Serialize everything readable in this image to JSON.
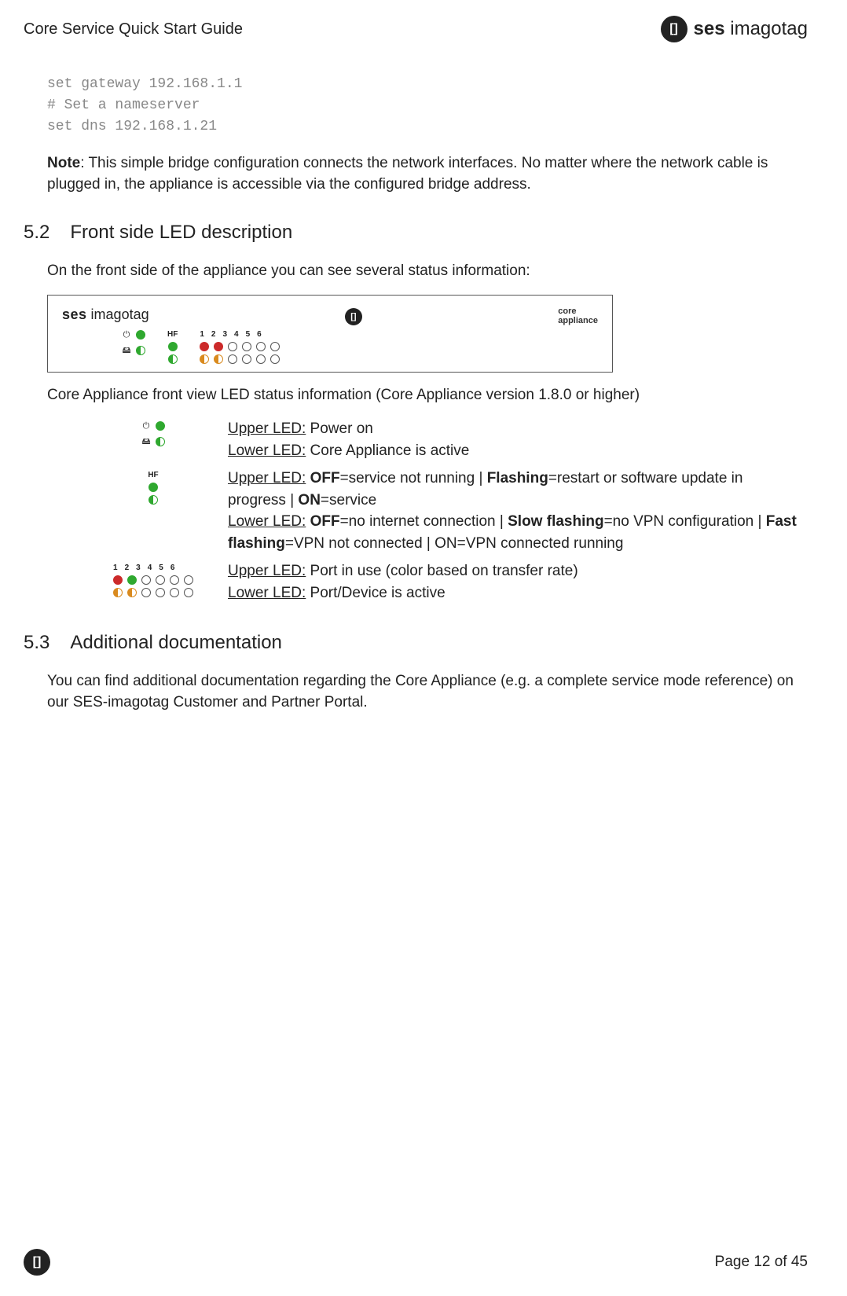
{
  "header": {
    "title": "Core Service Quick Start Guide",
    "logo_badge": "[]",
    "logo_bold": "ses",
    "logo_light": " imagotag"
  },
  "code": {
    "line1": "set gateway 192.168.1.1",
    "line2": "# Set a nameserver",
    "line3": "set dns 192.168.1.21"
  },
  "note": {
    "label": "Note",
    "text": ": This simple bridge configuration connects the network interfaces. No matter where the network cable is plugged in, the appliance is accessible via the configured bridge address."
  },
  "s52": {
    "num": "5.2",
    "title": "Front side LED description",
    "intro": "On the front side of the appliance you can see several status information:",
    "panel": {
      "brand_bold": "ses",
      "brand_light": " imagotag",
      "center_badge": "[]",
      "core_l1": "core",
      "core_l2": "appliance",
      "hf": "HF",
      "nums": [
        "1",
        "2",
        "3",
        "4",
        "5",
        "6"
      ],
      "power_sym": "⏻",
      "disk_sym": "🖴"
    },
    "caption": "Core Appliance front view LED status information (Core Appliance version 1.8.0 or higher)",
    "rows": {
      "r1": {
        "upper_label": "Upper LED:",
        "upper_text": " Power on",
        "lower_label": "Lower LED:",
        "lower_text": " Core Appliance is active"
      },
      "r2": {
        "hf": "HF",
        "upper_label": "Upper LED:",
        "u_off_b": "OFF",
        "u_off_t": "=service not running | ",
        "u_flash_b": "Flashing",
        "u_flash_t": "=restart or software update in progress | ",
        "u_on_b": "ON",
        "u_on_t": "=service",
        "lower_label": "Lower LED:",
        "l_off_b": "OFF",
        "l_off_t": "=no internet connection | ",
        "l_slow_b": "Slow flashing",
        "l_slow_t": "=no VPN configuration | ",
        "l_fast_b": "Fast flashing",
        "l_fast_t": "=VPN not connected | ON=VPN connected running"
      },
      "r3": {
        "nums": [
          "1",
          "2",
          "3",
          "4",
          "5",
          "6"
        ],
        "upper_label": "Upper LED:",
        "upper_text": " Port in use (color based on transfer rate)",
        "lower_label": "Lower LED:",
        "lower_text": " Port/Device is active"
      }
    }
  },
  "s53": {
    "num": "5.3",
    "title": "Additional documentation",
    "text": "You can find additional documentation regarding the Core Appliance (e.g. a complete service mode reference) on our SES-imagotag Customer and Partner Portal."
  },
  "footer": {
    "badge": "[]",
    "page": "Page 12 of 45"
  },
  "colors": {
    "green": "#2fa82f",
    "red": "#cc2a2a",
    "orange": "#d98a1f",
    "code_gray": "#888888",
    "text": "#222222"
  }
}
